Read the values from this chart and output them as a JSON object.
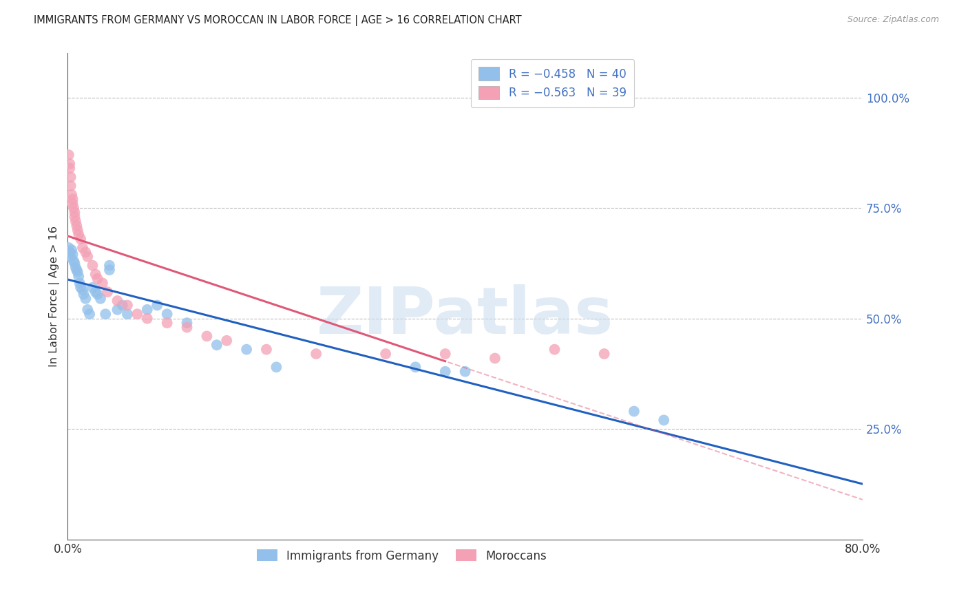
{
  "title": "IMMIGRANTS FROM GERMANY VS MOROCCAN IN LABOR FORCE | AGE > 16 CORRELATION CHART",
  "source": "Source: ZipAtlas.com",
  "ylabel": "In Labor Force | Age > 16",
  "right_yticks": [
    0.25,
    0.5,
    0.75,
    1.0
  ],
  "right_yticklabels": [
    "25.0%",
    "50.0%",
    "75.0%",
    "100.0%"
  ],
  "watermark": "ZIPatlas",
  "legend_entries": [
    {
      "label": "Immigrants from Germany",
      "R": "-0.458",
      "N": "40",
      "color": "#92C0EA"
    },
    {
      "label": "Moroccans",
      "R": "-0.563",
      "N": "39",
      "color": "#F4A0B5"
    }
  ],
  "germany_x": [
    0.001,
    0.002,
    0.003,
    0.004,
    0.005,
    0.006,
    0.007,
    0.008,
    0.009,
    0.01,
    0.011,
    0.012,
    0.013,
    0.015,
    0.016,
    0.018,
    0.02,
    0.022,
    0.025,
    0.028,
    0.03,
    0.033,
    0.038,
    0.042,
    0.042,
    0.05,
    0.055,
    0.06,
    0.08,
    0.09,
    0.1,
    0.12,
    0.15,
    0.18,
    0.21,
    0.35,
    0.38,
    0.4,
    0.57,
    0.6
  ],
  "germany_y": [
    0.66,
    0.65,
    0.64,
    0.655,
    0.645,
    0.63,
    0.625,
    0.615,
    0.61,
    0.605,
    0.595,
    0.58,
    0.57,
    0.565,
    0.555,
    0.545,
    0.52,
    0.51,
    0.57,
    0.56,
    0.555,
    0.545,
    0.51,
    0.62,
    0.61,
    0.52,
    0.53,
    0.51,
    0.52,
    0.53,
    0.51,
    0.49,
    0.44,
    0.43,
    0.39,
    0.39,
    0.38,
    0.38,
    0.29,
    0.27
  ],
  "morocco_x": [
    0.001,
    0.002,
    0.002,
    0.003,
    0.003,
    0.004,
    0.005,
    0.005,
    0.006,
    0.007,
    0.007,
    0.008,
    0.009,
    0.01,
    0.011,
    0.013,
    0.015,
    0.018,
    0.02,
    0.025,
    0.028,
    0.03,
    0.035,
    0.04,
    0.05,
    0.06,
    0.07,
    0.08,
    0.1,
    0.12,
    0.14,
    0.16,
    0.2,
    0.25,
    0.32,
    0.38,
    0.43,
    0.49,
    0.54
  ],
  "morocco_y": [
    0.87,
    0.85,
    0.84,
    0.82,
    0.8,
    0.78,
    0.77,
    0.76,
    0.75,
    0.74,
    0.73,
    0.72,
    0.71,
    0.7,
    0.69,
    0.68,
    0.66,
    0.65,
    0.64,
    0.62,
    0.6,
    0.59,
    0.58,
    0.56,
    0.54,
    0.53,
    0.51,
    0.5,
    0.49,
    0.48,
    0.46,
    0.45,
    0.43,
    0.42,
    0.42,
    0.42,
    0.41,
    0.43,
    0.42
  ],
  "xlim": [
    0.0,
    0.8
  ],
  "ylim": [
    0.0,
    1.1
  ],
  "germany_trend_start_y": 0.64,
  "germany_trend_end_y": 0.22,
  "morocco_trend_start_y": 0.73,
  "morocco_trend_end_x": 0.38,
  "morocco_trend_end_y": 0.43,
  "background_color": "#ffffff",
  "right_axis_color": "#4472c4",
  "blue_line_color": "#2060C0",
  "pink_line_color": "#E05878"
}
